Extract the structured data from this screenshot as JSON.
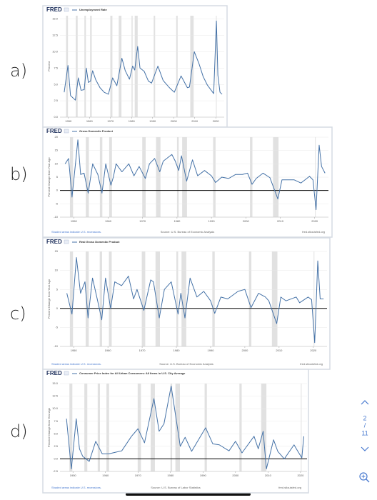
{
  "panel_labels": [
    "a)",
    "b)",
    "c)",
    "d)"
  ],
  "pager": {
    "page": 2,
    "separator": "/",
    "pages": 11
  },
  "chart_data": [
    {
      "type": "line",
      "brand": "FRED",
      "ylabel": "Percent",
      "zero_line": false,
      "grid": true,
      "xlim": [
        1946,
        2024
      ],
      "ylim": [
        0,
        15.5
      ],
      "xticks": [
        1950,
        1960,
        1970,
        1980,
        1990,
        2000,
        2010,
        2020
      ],
      "yticks": [
        {
          "value": 0,
          "label": "0.0"
        },
        2.5,
        {
          "value": 5,
          "label": "5.0"
        },
        7.5,
        {
          "value": 10,
          "label": "10.0"
        },
        12.5,
        {
          "value": 15,
          "label": "15.0"
        }
      ],
      "recession_color": "#e1e1e1",
      "recessions": [
        [
          1948.9,
          1949.8
        ],
        [
          1953.5,
          1954.4
        ],
        [
          1957.6,
          1958.3
        ],
        [
          1960.3,
          1961.1
        ],
        [
          1969.9,
          1970.9
        ],
        [
          1973.9,
          1975.2
        ],
        [
          1980.0,
          1980.5
        ],
        [
          1981.5,
          1982.9
        ],
        [
          1990.5,
          1991.2
        ],
        [
          2001.2,
          2001.9
        ],
        [
          2007.9,
          2009.5
        ],
        [
          2020.1,
          2020.3
        ]
      ],
      "x": [
        1948,
        1949.8,
        1951,
        1953.3,
        1954.7,
        1956,
        1957.5,
        1958.5,
        1959.5,
        1960.5,
        1961.5,
        1963,
        1965,
        1967,
        1969,
        1971,
        1973,
        1975.4,
        1977,
        1979,
        1980.5,
        1981.5,
        1982.9,
        1984,
        1986,
        1988,
        1989.5,
        1992.5,
        1995,
        1998,
        2000.3,
        2003.5,
        2006.5,
        2007.5,
        2009.8,
        2012,
        2014,
        2016,
        2019,
        2020.3,
        2021,
        2022,
        2023
      ],
      "series": [
        {
          "name": "Unemployment Rate",
          "color": "#4572a7",
          "values": [
            3.8,
            7.9,
            3.3,
            2.6,
            6.0,
            4.1,
            4.2,
            7.5,
            5.3,
            5.5,
            7.1,
            5.7,
            4.5,
            3.8,
            3.5,
            6.0,
            4.8,
            9.0,
            7.1,
            5.8,
            7.8,
            7.2,
            10.8,
            7.5,
            7.0,
            5.5,
            5.2,
            7.8,
            5.6,
            4.5,
            3.8,
            6.3,
            4.5,
            4.6,
            10.0,
            8.2,
            6.2,
            4.9,
            3.6,
            14.7,
            6.4,
            3.8,
            3.5
          ]
        }
      ]
    },
    {
      "type": "line",
      "brand": "FRED",
      "ylabel": "Percent Change from Year Ago",
      "zero_line": true,
      "grid": true,
      "note": "Shaded areas indicate U.S. recessions.",
      "source": "Source: U.S. Bureau of Economic Analysis",
      "url": "fred.stlouisfed.org",
      "xlim": [
        1946,
        2024
      ],
      "ylim": [
        -10,
        20
      ],
      "xticks": [
        1950,
        1960,
        1970,
        1980,
        1990,
        2000,
        2010,
        2020
      ],
      "yticks": [
        -10,
        -5,
        0,
        5,
        10,
        15,
        20
      ],
      "recession_color": "#e1e1e1",
      "recessions": [
        [
          1948.9,
          1949.8
        ],
        [
          1953.5,
          1954.4
        ],
        [
          1957.6,
          1958.3
        ],
        [
          1960.3,
          1961.1
        ],
        [
          1969.9,
          1970.9
        ],
        [
          1973.9,
          1975.2
        ],
        [
          1980.0,
          1980.5
        ],
        [
          1981.5,
          1982.9
        ],
        [
          1990.5,
          1991.2
        ],
        [
          2001.2,
          2001.9
        ],
        [
          2007.9,
          2009.5
        ],
        [
          2020.1,
          2020.3
        ]
      ],
      "x": [
        1947.5,
        1948.5,
        1949.5,
        1950.5,
        1951.2,
        1952,
        1953,
        1954.2,
        1955.5,
        1957,
        1958.2,
        1959.3,
        1960.8,
        1961.5,
        1962.3,
        1964,
        1966,
        1967.5,
        1969,
        1970.8,
        1972,
        1973.5,
        1975,
        1976,
        1978.5,
        1979.5,
        1980.5,
        1981.3,
        1982.8,
        1984.5,
        1986,
        1988,
        1990,
        1991.2,
        1993,
        1995,
        1997,
        1999,
        2000.5,
        2001.8,
        2003,
        2005,
        2007,
        2009.3,
        2010.5,
        2012,
        2014,
        2016,
        2018.5,
        2019.5,
        2020.4,
        2021.3,
        2022,
        2023
      ],
      "series": [
        {
          "name": "Gross Domestic Product",
          "color": "#4572a7",
          "values": [
            10,
            12,
            -2.5,
            10,
            19,
            6,
            6.5,
            -1,
            10,
            6,
            -1,
            10,
            2,
            5,
            10,
            7,
            10,
            5.5,
            9,
            4.5,
            10,
            12,
            7,
            11,
            13.5,
            11,
            7.5,
            13,
            3.5,
            11.5,
            5.5,
            7.5,
            5.5,
            3,
            5,
            4.5,
            6,
            6,
            6.5,
            2.3,
            4.5,
            6.5,
            4.8,
            -3.2,
            4,
            4,
            4,
            2.8,
            5.3,
            4,
            -7.2,
            17,
            9,
            6.5
          ]
        }
      ]
    },
    {
      "type": "line",
      "brand": "FRED",
      "ylabel": "Percent Change from Year Ago",
      "zero_line": true,
      "grid": true,
      "note": "Shaded areas indicate U.S. recessions.",
      "source": "Source: U.S. Bureau of Economic Analysis",
      "url": "fred.stlouisfed.org",
      "xlim": [
        1946,
        2024
      ],
      "ylim": [
        -10,
        15
      ],
      "xticks": [
        1950,
        1960,
        1970,
        1980,
        1990,
        2000,
        2010,
        2020
      ],
      "yticks": [
        -10,
        -5,
        0,
        5,
        10,
        15
      ],
      "recession_color": "#e1e1e1",
      "recessions": [
        [
          1948.9,
          1949.8
        ],
        [
          1953.5,
          1954.4
        ],
        [
          1957.6,
          1958.3
        ],
        [
          1960.3,
          1961.1
        ],
        [
          1969.9,
          1970.9
        ],
        [
          1973.9,
          1975.2
        ],
        [
          1980.0,
          1980.5
        ],
        [
          1981.5,
          1982.9
        ],
        [
          1990.5,
          1991.2
        ],
        [
          2001.2,
          2001.9
        ],
        [
          2007.9,
          2009.5
        ],
        [
          2020.1,
          2020.3
        ]
      ],
      "x": [
        1948,
        1949.5,
        1950.8,
        1952,
        1953.3,
        1954.2,
        1955.5,
        1957,
        1958.2,
        1959.3,
        1960.8,
        1962,
        1964,
        1966,
        1967.5,
        1968.5,
        1970.5,
        1972.5,
        1973.3,
        1975,
        1976.5,
        1978.5,
        1980.5,
        1981.3,
        1982.5,
        1984,
        1986,
        1988,
        1990,
        1991.2,
        1993,
        1995,
        1998,
        2000,
        2001.8,
        2004,
        2006,
        2007,
        2009.3,
        2010.5,
        2012,
        2015,
        2016,
        2018.5,
        2019.5,
        2020.4,
        2021.3,
        2022,
        2023
      ],
      "series": [
        {
          "name": "Real Gross Domestic Product",
          "color": "#4572a7",
          "values": [
            4,
            -1.5,
            13.4,
            4,
            7,
            -2.5,
            8,
            2,
            -3,
            8,
            0,
            7,
            6,
            8.5,
            2.5,
            5,
            -0.5,
            7.5,
            7,
            -2.5,
            5,
            7,
            -1.5,
            4,
            -2.5,
            8,
            3,
            4.5,
            2,
            -1.3,
            3,
            2.5,
            4.5,
            5,
            0.2,
            4,
            3,
            2,
            -4,
            3,
            2,
            3,
            1.5,
            3,
            2.3,
            -9,
            12.5,
            2.5,
            2.5
          ]
        }
      ]
    },
    {
      "type": "line",
      "brand": "FRED",
      "ylabel": "Percent Change from Year Ago",
      "zero_line": true,
      "grid": true,
      "note": "Shaded areas indicate U.S. recessions.",
      "source": "Source: U.S. Bureau of Labor Statistics",
      "url": "fred.stlouisfed.org",
      "xlim": [
        1946,
        2022
      ],
      "ylim": [
        -2.5,
        15
      ],
      "xticks": [
        1950,
        1960,
        1970,
        1980,
        1990,
        2000,
        2010,
        2020
      ],
      "yticks": [
        -2.5,
        {
          "value": 0,
          "label": "0.0"
        },
        2.5,
        {
          "value": 5,
          "label": "5.0"
        },
        7.5,
        {
          "value": 10,
          "label": "10.0"
        },
        12.5,
        {
          "value": 15,
          "label": "15.0"
        }
      ],
      "recession_color": "#e1e1e1",
      "recessions": [
        [
          1948.9,
          1949.8
        ],
        [
          1953.5,
          1954.4
        ],
        [
          1957.6,
          1958.3
        ],
        [
          1960.3,
          1961.1
        ],
        [
          1969.9,
          1970.9
        ],
        [
          1973.9,
          1975.2
        ],
        [
          1980.0,
          1980.5
        ],
        [
          1981.5,
          1982.9
        ],
        [
          1990.5,
          1991.2
        ],
        [
          2001.2,
          2001.9
        ],
        [
          2007.9,
          2009.5
        ],
        [
          2020.1,
          2020.3
        ]
      ],
      "x": [
        1948,
        1949.5,
        1951,
        1952,
        1953,
        1955,
        1957,
        1959,
        1961,
        1963,
        1965,
        1968,
        1970,
        1972,
        1974.9,
        1976.5,
        1978,
        1980.2,
        1983,
        1984.5,
        1986.5,
        1990.8,
        1993,
        1995,
        1998,
        2000,
        2002,
        2005.7,
        2007,
        2008.5,
        2009.5,
        2011.7,
        2013,
        2015,
        2018,
        2019,
        2020.4,
        2021
      ],
      "series": [
        {
          "name": "Consumer Price Index for All Urban Consumers: All Items in U.S. City Average",
          "color": "#4572a7",
          "values": [
            8,
            -2,
            8,
            2,
            0.5,
            -0.5,
            3.5,
            1,
            1,
            1.3,
            1.6,
            4.5,
            6,
            3.2,
            12,
            5.5,
            7,
            14.5,
            2.5,
            4.3,
            1.5,
            6.2,
            3,
            2.8,
            1.6,
            3.5,
            1.2,
            4.5,
            2,
            5.5,
            -2,
            3.8,
            1.5,
            0,
            2.8,
            1.7,
            0.2,
            4.5
          ]
        }
      ]
    }
  ]
}
